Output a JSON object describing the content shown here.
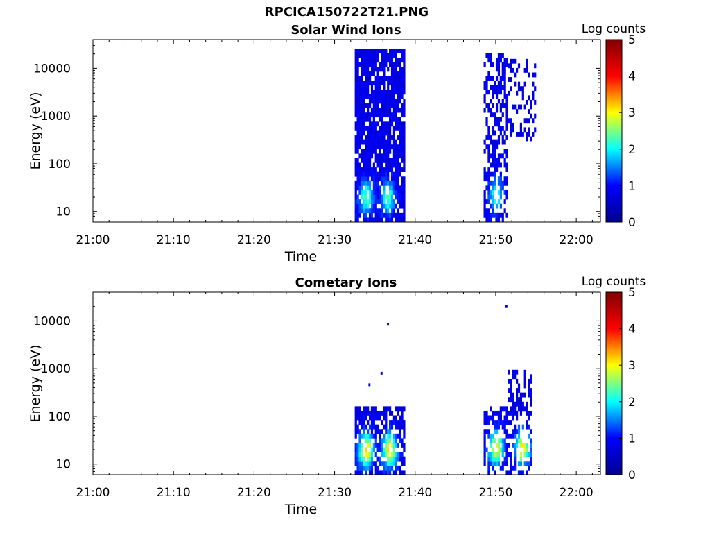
{
  "page": {
    "title": "RPCICA150722T21.PNG"
  },
  "colors": {
    "colormap": [
      "#00008f",
      "#0000ff",
      "#00ffff",
      "#ffff00",
      "#ff0000",
      "#800000"
    ],
    "axis": "#000000",
    "background": "#ffffff"
  },
  "chart_data": [
    {
      "type": "heatmap",
      "title": "Solar Wind Ions",
      "xlabel": "Time",
      "ylabel": "Energy (eV)",
      "colorbar_label": "Log counts",
      "colorbar_ticks": [
        "0",
        "1",
        "2",
        "3",
        "4",
        "5"
      ],
      "clim": [
        0,
        5
      ],
      "xlim_minutes": [
        0,
        63
      ],
      "x_ticks": [
        "21:00",
        "21:10",
        "21:20",
        "21:30",
        "21:40",
        "21:50",
        "22:00"
      ],
      "y_scale": "log",
      "ylim": [
        6,
        40000
      ],
      "y_ticks": [
        "10",
        "100",
        "1000",
        "10000"
      ],
      "y_tick_values": [
        10,
        100,
        1000,
        10000
      ],
      "time_bin_minutes": 0.25,
      "regions": [
        {
          "t_start": 32.5,
          "t_end": 38.75,
          "e_min": 6,
          "e_max": 25000,
          "density": 0.85,
          "base_level": 0.6,
          "cores": [
            {
              "t": 33.8,
              "e": 20,
              "level": 2.1
            },
            {
              "t": 36.5,
              "e": 20,
              "level": 2.1
            }
          ]
        },
        {
          "t_start": 48.5,
          "t_end": 51.5,
          "e_min": 6,
          "e_max": 18000,
          "density": 0.55,
          "base_level": 0.6,
          "cores": [
            {
              "t": 49.9,
              "e": 22,
              "level": 1.9
            }
          ]
        },
        {
          "t_start": 51.5,
          "t_end": 55.0,
          "e_min": 300,
          "e_max": 15000,
          "density": 0.3,
          "base_level": 0.5,
          "cores": []
        }
      ]
    },
    {
      "type": "heatmap",
      "title": "Cometary Ions",
      "xlabel": "Time",
      "ylabel": "Energy (eV)",
      "colorbar_label": "Log counts",
      "colorbar_ticks": [
        "0",
        "1",
        "2",
        "3",
        "4",
        "5"
      ],
      "clim": [
        0,
        5
      ],
      "xlim_minutes": [
        0,
        63
      ],
      "x_ticks": [
        "21:00",
        "21:10",
        "21:20",
        "21:30",
        "21:40",
        "21:50",
        "22:00"
      ],
      "y_scale": "log",
      "ylim": [
        6,
        40000
      ],
      "y_ticks": [
        "10",
        "100",
        "1000",
        "10000"
      ],
      "y_tick_values": [
        10,
        100,
        1000,
        10000
      ],
      "time_bin_minutes": 0.25,
      "regions": [
        {
          "t_start": 32.5,
          "t_end": 38.75,
          "e_min": 6,
          "e_max": 160,
          "density": 0.7,
          "base_level": 0.6,
          "cores": [
            {
              "t": 33.8,
              "e": 20,
              "level": 3.0
            },
            {
              "t": 36.7,
              "e": 20,
              "level": 3.0
            }
          ]
        },
        {
          "t_start": 48.5,
          "t_end": 51.5,
          "e_min": 6,
          "e_max": 160,
          "density": 0.55,
          "base_level": 0.6,
          "cores": [
            {
              "t": 49.9,
              "e": 22,
              "level": 2.8
            }
          ]
        },
        {
          "t_start": 51.5,
          "t_end": 54.5,
          "e_min": 6,
          "e_max": 900,
          "density": 0.45,
          "base_level": 0.6,
          "cores": [
            {
              "t": 53.2,
              "e": 22,
              "level": 2.9
            }
          ]
        }
      ],
      "isolated_points": [
        {
          "t": 36.5,
          "e": 8500
        },
        {
          "t": 51.2,
          "e": 20000
        },
        {
          "t": 35.7,
          "e": 800
        },
        {
          "t": 34.2,
          "e": 460
        }
      ]
    }
  ]
}
